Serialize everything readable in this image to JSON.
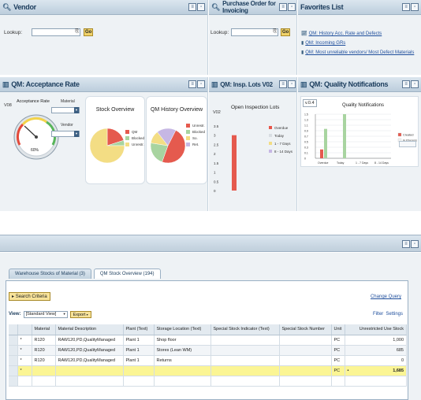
{
  "vendor": {
    "title": "Vendor",
    "lookup_label": "Lookup:",
    "go": "Go"
  },
  "po": {
    "title": "Purchase Order for Invoicing",
    "lookup_label": "Lookup:",
    "go": "Go"
  },
  "favorites": {
    "title": "Favorites List",
    "items": [
      "QM: History Acc. Rate and Defects",
      "QM: Incoming GRs",
      "QM: Most unreliable vendors/ Most Defect Materials"
    ]
  },
  "acceptance": {
    "title": "QM: Acceptance Rate",
    "side_label": "V08",
    "gauge_title": "Acceptance Rate",
    "gauge_value": "60%",
    "material_label": "Material",
    "vendor_label": "Vendor",
    "stock_title": "Stock Overview",
    "history_title": "QM History Overview",
    "stock_legend": [
      "QM",
      "Blocked",
      "Unrestr."
    ],
    "history_legend": [
      "Unrestr.",
      "Blocked",
      "So.",
      "Ret."
    ]
  },
  "lots": {
    "title": "QM: Insp. Lots V02",
    "side_label": "V02",
    "chart_title": "Open Inspection Lots",
    "legend": [
      "Overdue",
      "Today",
      "1 - 7 Days",
      "8 - 14 Days"
    ],
    "yticks": [
      "3.5",
      "3",
      "2.5",
      "2",
      "1.5",
      "1",
      "0.5",
      "0"
    ]
  },
  "notif": {
    "title": "QM: Quality Notifications",
    "version": "v.0.4",
    "chart_title": "Quality Notifications",
    "legend": [
      "Created",
      "In Process"
    ],
    "yticks": [
      "1.5",
      "1.3",
      "1.1",
      "0.9",
      "0.7",
      "0.5",
      "0.3",
      "0.1",
      "0"
    ],
    "xticks": [
      "Overdue",
      "Today",
      "1 - 7 Days",
      "8 - 14 Days"
    ]
  },
  "colors": {
    "red": "#e55a4e",
    "yellow": "#f3dd84",
    "green": "#a8d4a0",
    "purple": "#c6b7e4",
    "gray": "#c8cdd2"
  },
  "warehouse": {
    "tabs": [
      "Warehouse Stocks of Material (3)",
      "QM Stock Overview (194)"
    ],
    "search_criteria": "Search Criteria",
    "change_query": "Change Query",
    "view_label": "View:",
    "view_value": "[Standard View]",
    "export": "Export",
    "filter": "Filter",
    "settings": "Settings",
    "columns": [
      "Material",
      "Material Description",
      "Plant (Text)",
      "Storage Location (Text)",
      "Special Stock Indicator (Text)",
      "Special Stock Number",
      "Unit",
      "Unrestricted Use Stock"
    ],
    "rows": [
      {
        "mark": "*",
        "material": "R120",
        "desc": "RAW120,PD,QualityManaged",
        "plant": "Plant 1",
        "storage": "Shop floor",
        "ind": "",
        "num": "",
        "unit": "PC",
        "stock": "1,000"
      },
      {
        "mark": "*",
        "material": "R120",
        "desc": "RAW120,PD,QualityManaged",
        "plant": "Plant 1",
        "storage": "Stores (Lean WM)",
        "ind": "",
        "num": "",
        "unit": "PC",
        "stock": "685"
      },
      {
        "mark": "*",
        "material": "R120",
        "desc": "RAW120,PD,QualityManaged",
        "plant": "Plant 1",
        "storage": "Returns",
        "ind": "",
        "num": "",
        "unit": "PC",
        "stock": "0"
      }
    ],
    "total": {
      "mark": "*",
      "unit": "PC",
      "bullet": "•",
      "stock": "1,685"
    }
  },
  "chart_data": [
    {
      "type": "bar",
      "title": "Open Inspection Lots",
      "ylim": [
        0,
        3.5
      ],
      "categories": [
        "Overdue",
        "Today",
        "1 - 7 Days",
        "8 - 14 Days"
      ],
      "values": [
        3,
        0,
        0,
        0
      ]
    },
    {
      "type": "bar",
      "title": "Quality Notifications",
      "ylim": [
        0,
        1.5
      ],
      "categories": [
        "Overdue",
        "Today",
        "1 - 7 Days",
        "8 - 14 Days"
      ],
      "series": [
        {
          "name": "Created",
          "values": [
            0.3,
            0,
            0,
            0
          ]
        },
        {
          "name": "In Process",
          "values": [
            1,
            1.5,
            0,
            0
          ]
        }
      ]
    },
    {
      "type": "pie",
      "title": "Stock Overview",
      "categories": [
        "QM",
        "Blocked",
        "Unrestr."
      ],
      "values": [
        20,
        5,
        75
      ]
    },
    {
      "type": "pie",
      "title": "QM History Overview",
      "categories": [
        "Unrestr.",
        "Blocked",
        "So.",
        "Ret."
      ],
      "values": [
        48,
        22,
        12,
        18
      ]
    }
  ]
}
